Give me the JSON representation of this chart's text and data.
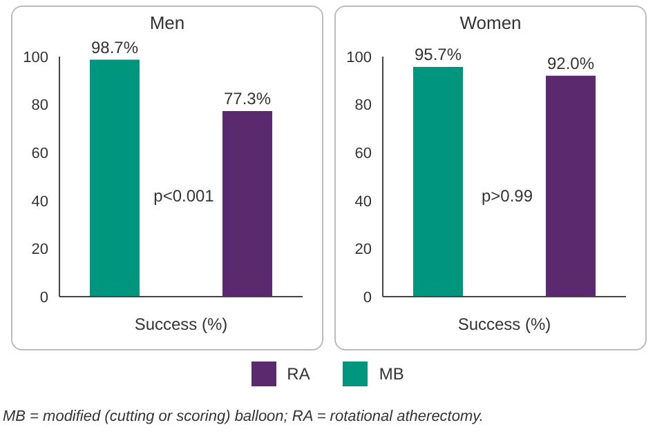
{
  "chart_data": [
    {
      "type": "bar",
      "title": "Men",
      "xlabel": "Success (%)",
      "categories": [
        null
      ],
      "series": [
        {
          "name": "MB",
          "color": "#00957f",
          "values": [
            98.7
          ],
          "value_labels": [
            "98.7%"
          ]
        },
        {
          "name": "RA",
          "color": "#5b2a6e",
          "values": [
            77.3
          ],
          "value_labels": [
            "77.3%"
          ]
        }
      ],
      "ylim": [
        0,
        100
      ],
      "yticks": [
        0,
        20,
        40,
        60,
        80,
        100
      ],
      "legend": "bottom",
      "annotations": [
        "p<0.001",
        "MB = modified (cutting or scoring) balloon; RA = rotational atherectomy."
      ]
    },
    {
      "type": "bar",
      "title": "Women",
      "xlabel": "Success (%)",
      "categories": [
        null
      ],
      "series": [
        {
          "color": "#00957f",
          "values": [
            95.7
          ],
          "value_labels": [
            "95.7%"
          ]
        },
        {
          "color": "#5b2a6e",
          "values": [
            92.0
          ],
          "value_labels": [
            "92.0%"
          ]
        }
      ],
      "ylim": [
        0,
        100
      ],
      "yticks": [
        0,
        20,
        40,
        60,
        80,
        100
      ],
      "annotations": [
        "p>0.99"
      ]
    }
  ]
}
